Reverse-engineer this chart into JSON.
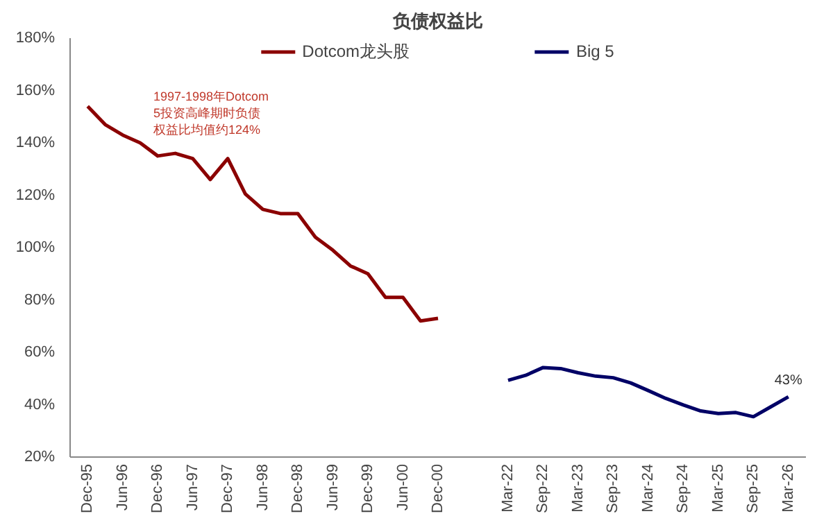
{
  "chart_data": {
    "type": "line",
    "title": "负债权益比",
    "categories": [
      "Dec-95",
      null,
      "Jun-96",
      null,
      "Dec-96",
      null,
      "Jun-97",
      null,
      "Dec-97",
      null,
      "Jun-98",
      null,
      "Dec-98",
      null,
      "Jun-99",
      null,
      "Dec-99",
      null,
      "Jun-00",
      null,
      "Dec-00",
      null,
      null,
      null,
      "Mar-22",
      null,
      "Sep-22",
      null,
      "Mar-23",
      null,
      "Sep-23",
      null,
      "Mar-24",
      null,
      "Sep-24",
      null,
      "Mar-25",
      null,
      "Sep-25",
      null,
      "Mar-26"
    ],
    "series": [
      {
        "name": "Dotcom龙头股",
        "color": "#8b0000",
        "values": [
          154,
          147,
          143,
          140,
          135,
          136,
          134,
          126,
          134,
          120.5,
          114.6,
          113,
          113,
          104,
          99,
          93,
          90,
          81,
          81,
          72,
          73,
          null,
          null,
          null,
          null,
          null,
          null,
          null,
          null,
          null,
          null,
          null,
          null,
          null,
          null,
          null,
          null,
          null,
          null,
          null,
          null
        ]
      },
      {
        "name": "Big 5",
        "color": "#000066",
        "values": [
          null,
          null,
          null,
          null,
          null,
          null,
          null,
          null,
          null,
          null,
          null,
          null,
          null,
          null,
          null,
          null,
          null,
          null,
          null,
          null,
          null,
          null,
          null,
          null,
          49.3,
          51.2,
          54.2,
          53.8,
          52.2,
          50.9,
          50.3,
          48.3,
          45.4,
          42.4,
          39.9,
          37.6,
          36.6,
          37.0,
          35.4,
          39.2,
          43.0
        ],
        "value_labels": [
          null,
          null,
          null,
          null,
          null,
          null,
          null,
          null,
          null,
          null,
          null,
          null,
          null,
          null,
          null,
          null,
          null,
          null,
          null,
          null,
          null,
          null,
          null,
          null,
          null,
          null,
          null,
          null,
          null,
          null,
          null,
          null,
          null,
          null,
          null,
          null,
          null,
          null,
          null,
          null,
          "43%"
        ]
      }
    ],
    "ylim": [
      20,
      180
    ],
    "yticks": [
      {
        "value": 20,
        "label": "20%"
      },
      {
        "value": 40,
        "label": "40%"
      },
      {
        "value": 60,
        "label": "60%"
      },
      {
        "value": 80,
        "label": "80%"
      },
      {
        "value": 100,
        "label": "100%"
      },
      {
        "value": 120,
        "label": "120%"
      },
      {
        "value": 140,
        "label": "140%"
      },
      {
        "value": 160,
        "label": "160%"
      },
      {
        "value": 180,
        "label": "180%"
      }
    ],
    "annotations": [
      "1997-1998年Dotcom",
      "5投资高峰期时负债",
      "权益比均值约124%"
    ],
    "grid": false,
    "legend": "top",
    "line_style": "solid",
    "marker": "none"
  }
}
